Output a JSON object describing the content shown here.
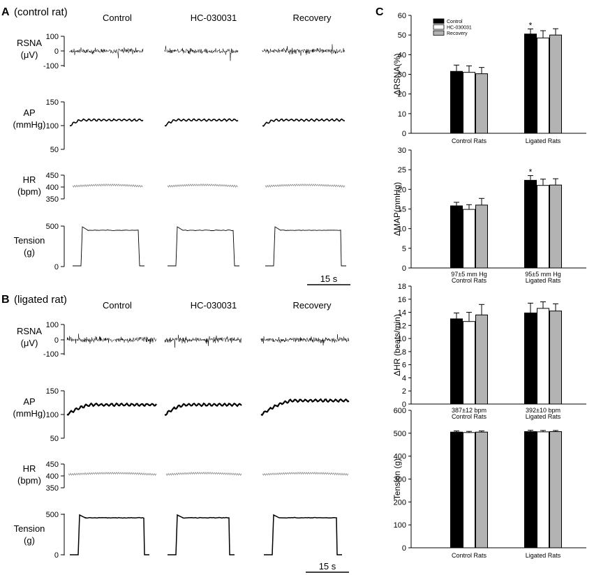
{
  "panels": {
    "A": {
      "letter": "A",
      "subtitle": "(control rat)",
      "columns": [
        "Control",
        "HC-030031",
        "Recovery"
      ],
      "signals": [
        {
          "key": "rsna",
          "label": [
            "RSNA",
            "(μV)"
          ],
          "ticks": [
            "100",
            "0",
            "-100"
          ]
        },
        {
          "key": "ap",
          "label": [
            "AP",
            "(mmHg)"
          ],
          "ticks": [
            "150",
            "100",
            "50"
          ]
        },
        {
          "key": "hr",
          "label": [
            "HR",
            "(bpm)"
          ],
          "ticks": [
            "450",
            "400",
            "350"
          ]
        },
        {
          "key": "tension",
          "label": [
            "Tension",
            "(g)"
          ],
          "ticks": [
            "500",
            "0"
          ]
        }
      ],
      "scale_bar": "15 s"
    },
    "B": {
      "letter": "B",
      "subtitle": "(ligated rat)",
      "columns": [
        "Control",
        "HC-030031",
        "Recovery"
      ],
      "signals": [
        {
          "key": "rsna",
          "label": [
            "RSNA",
            "(μV)"
          ],
          "ticks": [
            "100",
            "0",
            "-100"
          ]
        },
        {
          "key": "ap",
          "label": [
            "AP",
            "(mmHg)"
          ],
          "ticks": [
            "150",
            "100",
            "50"
          ]
        },
        {
          "key": "hr",
          "label": [
            "HR",
            "(bpm)"
          ],
          "ticks": [
            "450",
            "400",
            "350"
          ]
        },
        {
          "key": "tension",
          "label": [
            "Tension",
            "(g)"
          ],
          "ticks": [
            "500",
            "0"
          ]
        }
      ],
      "scale_bar": "15 s"
    },
    "C": {
      "letter": "C"
    }
  },
  "colors": {
    "control": "#000000",
    "hc030031": "#ffffff",
    "recovery": "#b3b3b3"
  },
  "chart_data": [
    {
      "type": "bar",
      "ylabel": "ΔRSNA(%)",
      "ylim": [
        0,
        60
      ],
      "yticks": [
        0,
        10,
        20,
        30,
        40,
        50,
        60
      ],
      "categories": [
        [
          "Control Rats"
        ],
        [
          "Ligated Rats"
        ]
      ],
      "legend": {
        "placement": "top-left",
        "entries": [
          "Control",
          "HC-030031",
          "Recovery"
        ]
      },
      "series": [
        {
          "name": "Control",
          "values": [
            31.5,
            50.5
          ],
          "errors": [
            3.2,
            2.6
          ]
        },
        {
          "name": "HC-030031",
          "values": [
            31,
            48.5
          ],
          "errors": [
            3.3,
            3.7
          ]
        },
        {
          "name": "Recovery",
          "values": [
            30.3,
            50
          ],
          "errors": [
            3.2,
            3.2
          ]
        }
      ],
      "annotations": [
        {
          "text": "*",
          "category": 1,
          "series": 0
        }
      ]
    },
    {
      "type": "bar",
      "ylabel": "ΔMAP(mmHg)",
      "ylim": [
        0,
        30
      ],
      "yticks": [
        0,
        5,
        10,
        15,
        20,
        25,
        30
      ],
      "categories": [
        [
          "97±5 mm Hg",
          "Control Rats"
        ],
        [
          "95±5 mm Hg",
          "Ligated Rats"
        ]
      ],
      "series": [
        {
          "name": "Control",
          "values": [
            15.8,
            22.3
          ],
          "errors": [
            0.9,
            1.2
          ]
        },
        {
          "name": "HC-030031",
          "values": [
            14.9,
            21
          ],
          "errors": [
            1.2,
            1.6
          ]
        },
        {
          "name": "Recovery",
          "values": [
            16,
            21.1
          ],
          "errors": [
            1.7,
            1.6
          ]
        }
      ],
      "annotations": [
        {
          "text": "*",
          "category": 1,
          "series": 0
        }
      ]
    },
    {
      "type": "bar",
      "ylabel": "ΔHR (beats/min)",
      "ylim": [
        0,
        18
      ],
      "yticks": [
        0,
        2,
        4,
        6,
        8,
        10,
        12,
        14,
        16,
        18
      ],
      "categories": [
        [
          "387±12 bpm",
          "Control Rats"
        ],
        [
          "392±10 bpm",
          "Ligated Rats"
        ]
      ],
      "series": [
        {
          "name": "Control",
          "values": [
            13,
            13.9
          ],
          "errors": [
            0.9,
            1.5
          ]
        },
        {
          "name": "HC-030031",
          "values": [
            12.6,
            14.6
          ],
          "errors": [
            1.4,
            1
          ]
        },
        {
          "name": "Recovery",
          "values": [
            13.6,
            14.2
          ],
          "errors": [
            1.6,
            1.1
          ]
        }
      ],
      "annotations": []
    },
    {
      "type": "bar",
      "ylabel": "Tension (g)",
      "ylim": [
        0,
        600
      ],
      "yticks": [
        0,
        100,
        200,
        300,
        400,
        500,
        600
      ],
      "categories": [
        [
          "Control Rats"
        ],
        [
          "Ligated Rats"
        ]
      ],
      "series": [
        {
          "name": "Control",
          "values": [
            505,
            507
          ],
          "errors": [
            5,
            6
          ]
        },
        {
          "name": "HC-030031",
          "values": [
            503,
            506
          ],
          "errors": [
            5,
            6
          ]
        },
        {
          "name": "Recovery",
          "values": [
            505,
            507
          ],
          "errors": [
            5,
            5
          ]
        }
      ],
      "annotations": []
    }
  ]
}
